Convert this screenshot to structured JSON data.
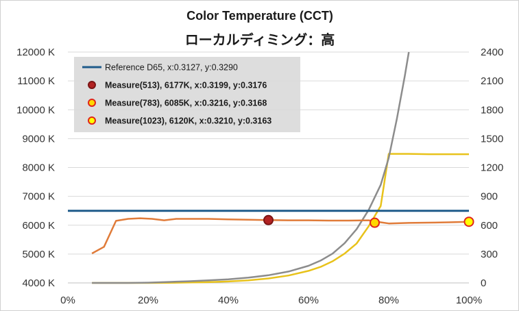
{
  "chart_data": {
    "type": "line",
    "title": "Color Temperature (CCT)",
    "subtitle": "ローカルディミング：高",
    "x_ticks": [
      "0%",
      "20%",
      "40%",
      "60%",
      "80%",
      "100%"
    ],
    "y_left_ticks": [
      "4000 K",
      "5000 K",
      "6000 K",
      "7000 K",
      "8000 K",
      "9000 K",
      "10000 K",
      "11000 K",
      "12000 K"
    ],
    "y_right_ticks": [
      "0",
      "300",
      "600",
      "900",
      "1200",
      "1500",
      "1800",
      "2100",
      "2400"
    ],
    "xlim": [
      0,
      100
    ],
    "ylim_left": [
      4000,
      12000
    ],
    "ylim_right": [
      0,
      2400
    ],
    "grid": "horizontal",
    "legend_position": "top-left",
    "legend": [
      {
        "label": "Reference D65, x:0.3127, y:0.3290",
        "marker": "line",
        "color": "#1f5b8a"
      },
      {
        "label": "Measure(513), 6177K, x:0.3199, y:0.3176",
        "marker": "dot",
        "fill": "#b22222",
        "stroke": "#7a1414"
      },
      {
        "label": "Measure(783), 6085K, x:0.3216, y:0.3168",
        "marker": "dot",
        "fill": "#ffd700",
        "stroke": "#e0241a"
      },
      {
        "label": "Measure(1023), 6120K, x:0.3210, y:0.3163",
        "marker": "dot",
        "fill": "#ffff00",
        "stroke": "#e0241a"
      }
    ],
    "series": [
      {
        "name": "Reference D65, x:0.3127, y:0.3290",
        "axis": "left",
        "color": "#1f5b8a",
        "x": [
          0,
          100
        ],
        "y": [
          6500,
          6500
        ]
      },
      {
        "axis": "left",
        "color": "#e07b39",
        "x": [
          6,
          9,
          12,
          15,
          18,
          21,
          24,
          27,
          30,
          35,
          40,
          45,
          50,
          55,
          60,
          65,
          70,
          75,
          78,
          80,
          85,
          90,
          95,
          100
        ],
        "y": [
          5020,
          5250,
          6150,
          6220,
          6240,
          6220,
          6170,
          6220,
          6220,
          6220,
          6200,
          6190,
          6177,
          6170,
          6170,
          6160,
          6160,
          6170,
          6100,
          6060,
          6080,
          6090,
          6100,
          6120
        ]
      },
      {
        "axis": "right",
        "color": "#e8c21a",
        "x": [
          6,
          12,
          15,
          20,
          25,
          30,
          35,
          40,
          45,
          50,
          55,
          60,
          63,
          66,
          69,
          72,
          75,
          78,
          80,
          85,
          90,
          95,
          100
        ],
        "y": [
          0,
          0,
          0,
          0,
          1,
          4,
          8,
          15,
          26,
          46,
          77,
          125,
          167,
          225,
          305,
          410,
          590,
          800,
          1342,
          1342,
          1338,
          1338,
          1338
        ]
      },
      {
        "axis": "right",
        "color": "#8c8c8c",
        "x": [
          6,
          12,
          15,
          20,
          25,
          30,
          35,
          40,
          45,
          50,
          55,
          60,
          63,
          66,
          69,
          72,
          75,
          78,
          80,
          82,
          84,
          85
        ],
        "y": [
          0,
          0,
          0,
          3,
          10,
          17,
          26,
          38,
          55,
          80,
          118,
          178,
          232,
          305,
          412,
          560,
          760,
          1020,
          1300,
          1700,
          2150,
          2400
        ]
      }
    ],
    "markers": [
      {
        "x": 50,
        "y": 6177,
        "fill": "#b22222",
        "stroke": "#7a1414"
      },
      {
        "x": 76.5,
        "y": 6085,
        "fill": "#ffd700",
        "stroke": "#e0241a"
      },
      {
        "x": 100,
        "y": 6120,
        "fill": "#ffff00",
        "stroke": "#e0241a"
      }
    ]
  }
}
